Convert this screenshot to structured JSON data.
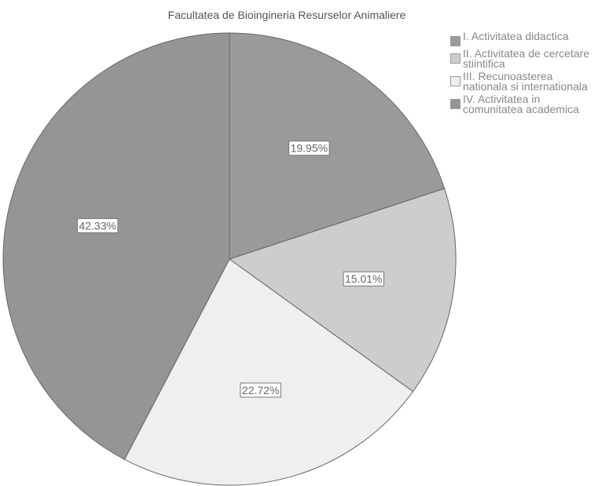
{
  "chart_data": {
    "type": "pie",
    "title": "Facultatea de Bioingineria Resurselor Animaliere",
    "categories": [
      "I. Activitatea didactica",
      "II. Activitatea de cercetare stiintifica",
      "III. Recunoasterea nationala si internationala",
      "IV. Activitatea in comunitatea academica"
    ],
    "values": [
      19.95,
      15.01,
      22.72,
      42.33
    ],
    "value_labels": [
      "19.95%",
      "15.01%",
      "22.72%",
      "42.33%"
    ],
    "colors": [
      "#9a9a9a",
      "#cdcdcd",
      "#efefef",
      "#959595"
    ],
    "legend": "right"
  }
}
